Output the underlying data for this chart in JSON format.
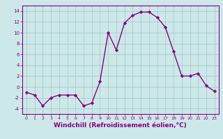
{
  "x": [
    0,
    1,
    2,
    3,
    4,
    5,
    6,
    7,
    8,
    9,
    10,
    11,
    12,
    13,
    14,
    15,
    16,
    17,
    18,
    19,
    20,
    21,
    22,
    23
  ],
  "y": [
    -1,
    -1.5,
    -3.5,
    -2,
    -1.5,
    -1.5,
    -1.5,
    -3.5,
    -3,
    1,
    10,
    6.8,
    11.8,
    13.2,
    13.8,
    13.8,
    12.8,
    11,
    6.5,
    2,
    2,
    2.5,
    0.2,
    -0.8
  ],
  "line_color": "#880088",
  "marker": "D",
  "marker_size": 2.2,
  "linewidth": 1.0,
  "xlabel": "Windchill (Refroidissement éolien,°C)",
  "xlabel_fontsize": 6.5,
  "xlim": [
    -0.5,
    23.5
  ],
  "ylim": [
    -5,
    15
  ],
  "yticks": [
    -4,
    -2,
    0,
    2,
    4,
    6,
    8,
    10,
    12,
    14
  ],
  "xticks": [
    0,
    1,
    2,
    3,
    4,
    5,
    6,
    7,
    8,
    9,
    10,
    11,
    12,
    13,
    14,
    15,
    16,
    17,
    18,
    19,
    20,
    21,
    22,
    23
  ],
  "background_color": "#cce8e8",
  "grid_color": "#aacccc",
  "tick_color": "#880088",
  "tick_label_color": "#880088",
  "axis_label_color": "#880088",
  "spine_color": "#880088"
}
